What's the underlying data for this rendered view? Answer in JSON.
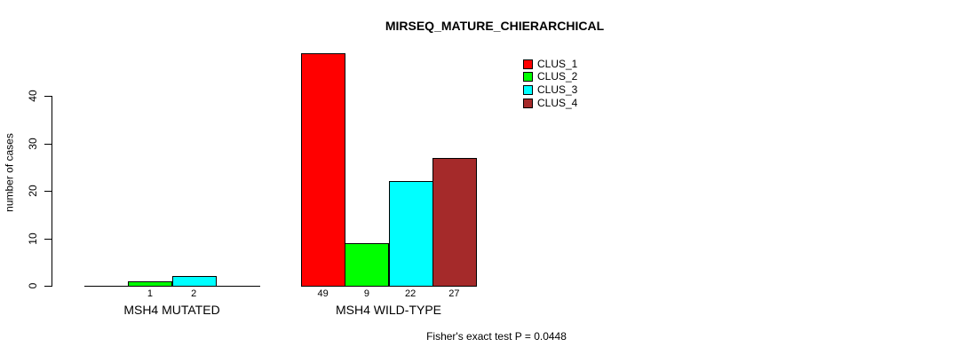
{
  "chart_data": {
    "type": "bar",
    "title": "MIRSEQ_MATURE_CHIERARCHICAL",
    "ylabel": "number of cases",
    "xlabel": "",
    "ylim": [
      0,
      40
    ],
    "yticks": [
      0,
      10,
      20,
      30,
      40
    ],
    "grid": false,
    "legend_position": "top-right-inside",
    "legend": [
      {
        "name": "CLUS_1",
        "color": "#ff0000"
      },
      {
        "name": "CLUS_2",
        "color": "#00ff00"
      },
      {
        "name": "CLUS_3",
        "color": "#00ffff"
      },
      {
        "name": "CLUS_4",
        "color": "#a52a2a"
      }
    ],
    "categories": [
      "MSH4 MUTATED",
      "MSH4 WILD-TYPE"
    ],
    "series": [
      {
        "name": "CLUS_1",
        "values": [
          0,
          49
        ]
      },
      {
        "name": "CLUS_2",
        "values": [
          1,
          9
        ]
      },
      {
        "name": "CLUS_3",
        "values": [
          2,
          22
        ]
      },
      {
        "name": "CLUS_4",
        "values": [
          0,
          27
        ]
      }
    ],
    "value_labels_shown": [
      "1",
      "2",
      "49",
      "9",
      "22",
      "27"
    ],
    "footnote": "Fisher's exact test P = 0.0448"
  }
}
